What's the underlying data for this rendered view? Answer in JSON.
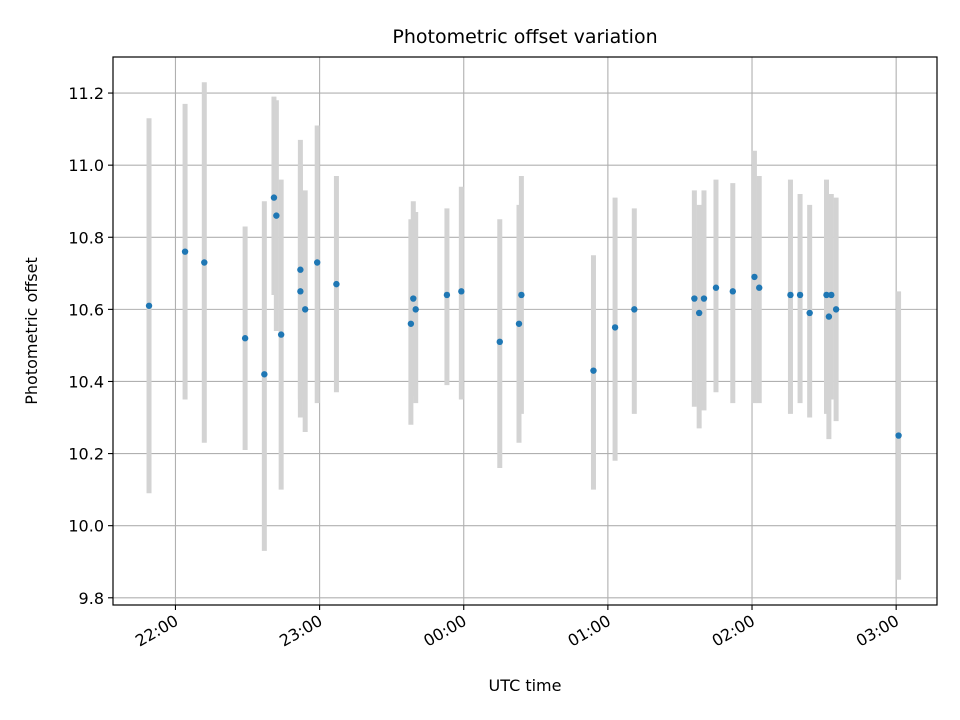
{
  "chart_data": {
    "type": "scatter",
    "title": "Photometric offset variation",
    "xlabel": "UTC time",
    "ylabel": "Photometric offset",
    "x_ticks": [
      "22:00",
      "23:00",
      "00:00",
      "01:00",
      "02:00",
      "03:00"
    ],
    "y_ticks": [
      "9.8",
      "10.0",
      "10.2",
      "10.4",
      "10.6",
      "10.8",
      "11.0",
      "11.2"
    ],
    "y_tick_values": [
      9.8,
      10.0,
      10.2,
      10.4,
      10.6,
      10.8,
      11.0,
      11.2
    ],
    "x_tick_values": [
      "22:00",
      "23:00",
      "00:00",
      "01:00",
      "02:00",
      "03:00"
    ],
    "xlim": [
      "21:34",
      "03:17"
    ],
    "ylim": [
      9.78,
      11.3
    ],
    "grid": true,
    "point_color": "#1f77b4",
    "errorbar_color": "#d3d3d3",
    "points": [
      {
        "x": "21:49",
        "y": 10.61,
        "lo": 10.09,
        "hi": 11.13
      },
      {
        "x": "22:04",
        "y": 10.76,
        "lo": 10.35,
        "hi": 11.17
      },
      {
        "x": "22:12",
        "y": 10.73,
        "lo": 10.23,
        "hi": 11.23
      },
      {
        "x": "22:29",
        "y": 10.52,
        "lo": 10.21,
        "hi": 10.83
      },
      {
        "x": "22:37",
        "y": 10.42,
        "lo": 9.93,
        "hi": 10.9
      },
      {
        "x": "22:41",
        "y": 10.91,
        "lo": 10.64,
        "hi": 11.19
      },
      {
        "x": "22:42",
        "y": 10.86,
        "lo": 10.54,
        "hi": 11.18
      },
      {
        "x": "22:44",
        "y": 10.53,
        "lo": 10.1,
        "hi": 10.96
      },
      {
        "x": "22:52",
        "y": 10.71,
        "lo": 10.35,
        "hi": 11.07
      },
      {
        "x": "22:52",
        "y": 10.65,
        "lo": 10.3,
        "hi": 11.0
      },
      {
        "x": "22:54",
        "y": 10.6,
        "lo": 10.26,
        "hi": 10.93
      },
      {
        "x": "22:59",
        "y": 10.73,
        "lo": 10.34,
        "hi": 11.11
      },
      {
        "x": "23:07",
        "y": 10.67,
        "lo": 10.37,
        "hi": 10.97
      },
      {
        "x": "23:38",
        "y": 10.56,
        "lo": 10.28,
        "hi": 10.85
      },
      {
        "x": "23:39",
        "y": 10.63,
        "lo": 10.36,
        "hi": 10.9
      },
      {
        "x": "23:40",
        "y": 10.6,
        "lo": 10.34,
        "hi": 10.87
      },
      {
        "x": "23:53",
        "y": 10.64,
        "lo": 10.39,
        "hi": 10.88
      },
      {
        "x": "23:59",
        "y": 10.65,
        "lo": 10.35,
        "hi": 10.94
      },
      {
        "x": "00:15",
        "y": 10.51,
        "lo": 10.16,
        "hi": 10.85
      },
      {
        "x": "00:23",
        "y": 10.56,
        "lo": 10.23,
        "hi": 10.89
      },
      {
        "x": "00:24",
        "y": 10.64,
        "lo": 10.31,
        "hi": 10.97
      },
      {
        "x": "00:54",
        "y": 10.43,
        "lo": 10.1,
        "hi": 10.75
      },
      {
        "x": "01:03",
        "y": 10.55,
        "lo": 10.18,
        "hi": 10.91
      },
      {
        "x": "01:11",
        "y": 10.6,
        "lo": 10.31,
        "hi": 10.88
      },
      {
        "x": "01:36",
        "y": 10.63,
        "lo": 10.33,
        "hi": 10.93
      },
      {
        "x": "01:38",
        "y": 10.59,
        "lo": 10.27,
        "hi": 10.89
      },
      {
        "x": "01:40",
        "y": 10.63,
        "lo": 10.32,
        "hi": 10.93
      },
      {
        "x": "01:45",
        "y": 10.66,
        "lo": 10.37,
        "hi": 10.96
      },
      {
        "x": "01:52",
        "y": 10.65,
        "lo": 10.34,
        "hi": 10.95
      },
      {
        "x": "02:01",
        "y": 10.69,
        "lo": 10.34,
        "hi": 11.04
      },
      {
        "x": "02:03",
        "y": 10.66,
        "lo": 10.34,
        "hi": 10.97
      },
      {
        "x": "02:16",
        "y": 10.64,
        "lo": 10.31,
        "hi": 10.96
      },
      {
        "x": "02:20",
        "y": 10.64,
        "lo": 10.34,
        "hi": 10.92
      },
      {
        "x": "02:24",
        "y": 10.59,
        "lo": 10.3,
        "hi": 10.89
      },
      {
        "x": "02:31",
        "y": 10.64,
        "lo": 10.31,
        "hi": 10.96
      },
      {
        "x": "02:32",
        "y": 10.58,
        "lo": 10.24,
        "hi": 10.92
      },
      {
        "x": "02:33",
        "y": 10.64,
        "lo": 10.35,
        "hi": 10.92
      },
      {
        "x": "02:35",
        "y": 10.6,
        "lo": 10.29,
        "hi": 10.91
      },
      {
        "x": "03:01",
        "y": 10.25,
        "lo": 9.85,
        "hi": 10.65
      }
    ]
  }
}
